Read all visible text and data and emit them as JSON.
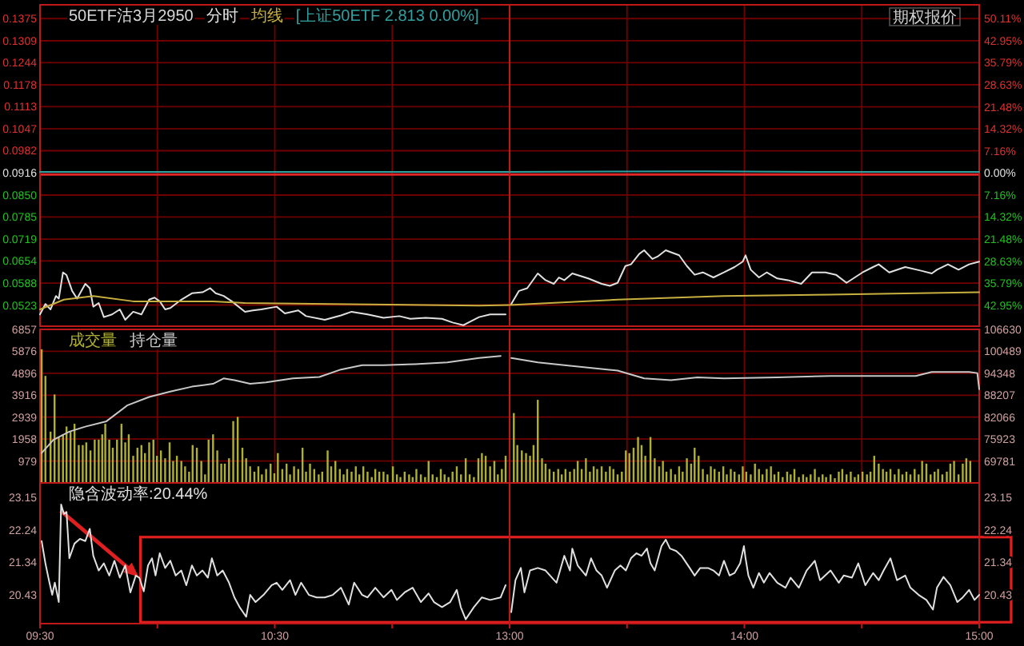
{
  "chart_data": [
    {
      "type": "line",
      "title": "50ETF沽3月2950",
      "legend": "top",
      "grid": true,
      "tick_labels": "y",
      "xlim": [
        9.5,
        11.5
      ],
      "xticks": [
        {
          "value": 10,
          "label": null
        },
        {
          "value": 10.5,
          "label": null
        },
        {
          "value": 11,
          "label": null
        }
      ],
      "ylim": [
        0.046,
        0.1416
      ],
      "yticks": [
        0.1375,
        0.1309,
        0.1244,
        0.1178,
        0.1113,
        0.1047,
        0.0982,
        0.0916,
        {
          "value": 0.085,
          "label": "0.0850"
        },
        0.0785,
        0.0719,
        0.0654,
        0.0588,
        0.0523
      ],
      "ref_lines": [
        {
          "axis": "y",
          "value": 0.0916,
          "color": "#e02828"
        }
      ],
      "series": [
        {
          "name": "分时",
          "color": "#e0e0e0",
          "x": [
            9.5,
            9.523,
            9.545,
            9.568,
            9.58,
            9.598,
            9.613,
            9.637,
            9.658,
            9.693,
            9.712,
            9.727,
            9.75,
            9.772,
            9.807,
            9.84,
            9.863,
            9.897,
            9.932,
            9.965,
            9.988,
            10.01,
            10.033,
            10.055,
            10.102,
            10.147,
            10.192,
            10.225,
            10.248,
            10.282,
            10.317,
            10.373,
            10.407,
            10.442,
            10.508,
            10.543,
            10.6,
            10.633,
            10.713,
            10.782,
            10.827,
            10.895,
            10.963,
            11.03,
            11.077,
            11.143,
            11.212,
            11.257,
            11.303,
            11.325,
            11.37,
            11.417,
            11.483
          ],
          "values": [
            0.0495,
            0.0526,
            0.051,
            0.055,
            0.0542,
            0.062,
            0.0612,
            0.0565,
            0.0542,
            0.0586,
            0.0573,
            0.0518,
            0.0529,
            0.0487,
            0.0495,
            0.051,
            0.0479,
            0.0503,
            0.0495,
            0.0539,
            0.0545,
            0.0534,
            0.051,
            0.0514,
            0.0539,
            0.0558,
            0.0561,
            0.0573,
            0.0558,
            0.055,
            0.0534,
            0.0503,
            0.0507,
            0.051,
            0.0518,
            0.0498,
            0.0507,
            0.049,
            0.0479,
            0.0492,
            0.0503,
            0.0495,
            0.0485,
            0.049,
            0.0482,
            0.0485,
            0.0482,
            0.0471,
            0.0463,
            0.0471,
            0.0487,
            0.0495,
            0.0495
          ]
        },
        {
          "name": "均线",
          "color": "#c8b040",
          "x": [
            9.5,
            9.602,
            9.727,
            9.897,
            10.237,
            10.373,
            10.735,
            11.37,
            11.5
          ],
          "values": [
            0.051,
            0.0539,
            0.055,
            0.0534,
            0.0534,
            0.0529,
            0.0526,
            0.0521,
            0.0523
          ]
        },
        {
          "name": "[上证50ETF 2.813 0.00%]",
          "color": "#30a0a0",
          "x": [
            9.5,
            10.5,
            11.5
          ],
          "values": [
            0.0919,
            0.0919,
            0.0919
          ]
        }
      ]
    },
    {
      "type": "line",
      "grid": true,
      "tick_labels": "y",
      "annotations": [
        "期权报价"
      ],
      "xlim": [
        13,
        15
      ],
      "xticks": [
        {
          "value": 13.5,
          "label": null
        },
        {
          "value": 14,
          "label": null
        },
        {
          "value": 14.5,
          "label": null
        }
      ],
      "ylim": [
        0.046,
        0.1416
      ],
      "y2lim": [
        -49.78,
        54.59
      ],
      "y2ticks": [
        {
          "value": 50.11,
          "label": "50.11%"
        },
        {
          "value": 42.95,
          "label": "42.95%"
        },
        {
          "value": 35.79,
          "label": "35.79%"
        },
        {
          "value": 28.63,
          "label": "28.63%"
        },
        {
          "value": 21.48,
          "label": "21.48%"
        },
        {
          "value": 14.32,
          "label": "14.32%"
        },
        {
          "value": 7.16,
          "label": "7.16%"
        },
        {
          "value": 0,
          "label": "0.00%"
        },
        {
          "value": -7.16,
          "label": "7.16%"
        },
        {
          "value": -14.32,
          "label": "14.32%"
        },
        {
          "value": -21.48,
          "label": "21.48%"
        },
        {
          "value": -28.63,
          "label": "28.63%"
        },
        {
          "value": -35.79,
          "label": "35.79%"
        },
        {
          "value": -42.95,
          "label": "42.95%"
        }
      ],
      "ref_lines": [
        {
          "axis": "y2",
          "value": 0,
          "color": "#e02828"
        }
      ],
      "series": [
        {
          "color": "#e0e0e0",
          "x": [
            13.007,
            13.04,
            13.075,
            13.12,
            13.153,
            13.188,
            13.21,
            13.233,
            13.267,
            13.335,
            13.392,
            13.427,
            13.46,
            13.493,
            13.517,
            13.552,
            13.573,
            13.608,
            13.63,
            13.665,
            13.687,
            13.722,
            13.755,
            13.788,
            13.823,
            13.868,
            13.913,
            13.958,
            13.993,
            14.005,
            14.027,
            14.062,
            14.095,
            14.14,
            14.185,
            14.242,
            14.288,
            14.345,
            14.39,
            14.435,
            14.503,
            14.548,
            14.572,
            14.617,
            14.685,
            14.753,
            14.798,
            14.82,
            14.867,
            14.912,
            14.957,
            15
          ],
          "values": [
            0.0526,
            0.0565,
            0.0573,
            0.0617,
            0.0597,
            0.0586,
            0.0605,
            0.0597,
            0.0617,
            0.0602,
            0.0586,
            0.058,
            0.0589,
            0.0639,
            0.0644,
            0.0675,
            0.0686,
            0.066,
            0.0667,
            0.0686,
            0.068,
            0.0671,
            0.0639,
            0.0613,
            0.062,
            0.0605,
            0.062,
            0.0636,
            0.0652,
            0.0671,
            0.0628,
            0.0605,
            0.062,
            0.0602,
            0.0597,
            0.0586,
            0.062,
            0.062,
            0.0613,
            0.0589,
            0.062,
            0.0636,
            0.0644,
            0.062,
            0.0636,
            0.0625,
            0.0617,
            0.0628,
            0.0644,
            0.0628,
            0.0644,
            0.0652
          ]
        },
        {
          "color": "#c8b040",
          "x": [
            13,
            13.46,
            13.913,
            14.367,
            15
          ],
          "values": [
            0.0523,
            0.0539,
            0.055,
            0.0554,
            0.0561
          ]
        },
        {
          "color": "#30a0a0",
          "x": [
            13,
            13.833,
            14.333,
            15
          ],
          "values": [
            0.0919,
            0.0921,
            0.0919,
            0.0919
          ]
        }
      ]
    },
    {
      "type": "bar",
      "legend": "top left",
      "grid": true,
      "tick_labels": "y",
      "xlim": [
        9.5,
        11.5
      ],
      "xticks": [
        {
          "value": 10,
          "label": null
        },
        {
          "value": 10.5,
          "label": null
        },
        {
          "value": 11,
          "label": null
        }
      ],
      "ylim": [
        0,
        6857
      ],
      "yticks": [
        979,
        1958,
        2939,
        3916,
        4896,
        5876,
        6857
      ],
      "y2lim": [
        63640,
        106630
      ],
      "series": [
        {
          "name": "成交量",
          "color": "#b0b030",
          "x": [
            9.507,
            9.523,
            9.545,
            9.562,
            9.58,
            9.598,
            9.613,
            9.63,
            9.647,
            9.665,
            9.682,
            9.697,
            9.715,
            9.733,
            9.75,
            9.765,
            9.778,
            9.795,
            9.81,
            9.828,
            9.847,
            9.863,
            9.878,
            9.897,
            9.915,
            9.932,
            9.947,
            9.965,
            9.983,
            9.998,
            10.015,
            10.033,
            10.052,
            10.067,
            10.083,
            10.102,
            10.118,
            10.135,
            10.15,
            10.168,
            10.187,
            10.203,
            10.218,
            10.237,
            10.255,
            10.272,
            10.287,
            10.305,
            10.323,
            10.342,
            10.362,
            10.378,
            10.395,
            10.413,
            10.43,
            10.445,
            10.463,
            10.482,
            10.498,
            10.513,
            10.532,
            10.55,
            10.565,
            10.582,
            10.6,
            10.618,
            10.633,
            10.65,
            10.668,
            10.687,
            10.702,
            10.725,
            10.74,
            10.758,
            10.777,
            10.793,
            10.808,
            10.827,
            10.845,
            10.86,
            10.877,
            10.895,
            10.913,
            10.928,
            10.945,
            10.963,
            10.98,
            11.003,
            11.02,
            11.035,
            11.053,
            11.072,
            11.087,
            11.103,
            11.122,
            11.14,
            11.155,
            11.172,
            11.19,
            11.207,
            11.223,
            11.24,
            11.257,
            11.275,
            11.293,
            11.313,
            11.33,
            11.348,
            11.367,
            11.382,
            11.398,
            11.417,
            11.435,
            11.45,
            11.467,
            11.483
          ],
          "values": [
            5970,
            4780,
            2290,
            3950,
            2050,
            2170,
            2520,
            2290,
            2640,
            1690,
            1690,
            1810,
            1450,
            1930,
            1930,
            2170,
            2640,
            1930,
            1570,
            1930,
            2640,
            1810,
            2170,
            1210,
            1570,
            1690,
            1330,
            1810,
            1930,
            1210,
            1450,
            1100,
            1810,
            980,
            1210,
            980,
            740,
            500,
            1690,
            1570,
            980,
            380,
            1930,
            2170,
            1450,
            860,
            860,
            1100,
            2760,
            2950,
            1570,
            1100,
            740,
            500,
            740,
            380,
            620,
            860,
            430,
            1330,
            620,
            860,
            380,
            740,
            620,
            1570,
            500,
            860,
            620,
            380,
            500,
            1450,
            740,
            980,
            620,
            380,
            620,
            500,
            740,
            380,
            740,
            500,
            260,
            620,
            500,
            500,
            380,
            740,
            380,
            260,
            500,
            380,
            260,
            620,
            380,
            260,
            980,
            380,
            260,
            620,
            380,
            260,
            500,
            740,
            380,
            1100,
            380,
            260,
            1100,
            1330,
            1210,
            740,
            980,
            380,
            620,
            1210
          ]
        },
        {
          "name": "持仓量",
          "type": "line",
          "axis": "y2",
          "color": "#c8c8c8",
          "x": [
            9.507,
            9.557,
            9.625,
            9.693,
            9.783,
            9.873,
            9.965,
            10.055,
            10.147,
            10.237,
            10.282,
            10.328,
            10.395,
            10.463,
            10.577,
            10.69,
            10.782,
            10.872,
            10.963,
            11.098,
            11.235,
            11.37,
            11.462
          ],
          "values": [
            72000,
            75700,
            78000,
            79400,
            80900,
            85400,
            87700,
            89200,
            90600,
            91400,
            92900,
            92400,
            91400,
            91800,
            92900,
            93300,
            95400,
            96600,
            96600,
            96900,
            97400,
            98600,
            99200
          ]
        }
      ]
    },
    {
      "type": "bar",
      "grid": true,
      "tick_labels": "y",
      "xlim": [
        13,
        15
      ],
      "xticks": [
        {
          "value": 13.5,
          "label": null
        },
        {
          "value": 14,
          "label": null
        },
        {
          "value": 14.5,
          "label": null
        }
      ],
      "ylim": [
        0,
        6857
      ],
      "y2lim": [
        63640,
        106630
      ],
      "y2ticks": [
        69781,
        75923,
        82066,
        88207,
        94348,
        100489,
        106630
      ],
      "series": [
        {
          "color": "#b0b030",
          "x": [
            13.018,
            13.033,
            13.052,
            13.07,
            13.087,
            13.102,
            13.12,
            13.138,
            13.153,
            13.17,
            13.188,
            13.207,
            13.222,
            13.238,
            13.257,
            13.275,
            13.29,
            13.307,
            13.325,
            13.342,
            13.358,
            13.373,
            13.392,
            13.41,
            13.427,
            13.442,
            13.46,
            13.478,
            13.495,
            13.51,
            13.528,
            13.547,
            13.562,
            13.578,
            13.6,
            13.618,
            13.637,
            13.653,
            13.668,
            13.687,
            13.705,
            13.722,
            13.737,
            13.755,
            13.773,
            13.788,
            13.805,
            13.823,
            13.842,
            13.857,
            13.873,
            13.892,
            13.91,
            13.925,
            13.942,
            13.958,
            13.977,
            13.993,
            14.008,
            14.027,
            14.045,
            14.062,
            14.077,
            14.095,
            14.113,
            14.128,
            14.145,
            14.163,
            14.182,
            14.197,
            14.213,
            14.232,
            14.25,
            14.265,
            14.282,
            14.3,
            14.317,
            14.333,
            14.348,
            14.367,
            14.385,
            14.402,
            14.417,
            14.435,
            14.453,
            14.47,
            14.485,
            14.503,
            14.522,
            14.537,
            14.553,
            14.572,
            14.59,
            14.605,
            14.622,
            14.64,
            14.657,
            14.673,
            14.69,
            14.707,
            14.725,
            14.742,
            14.757,
            14.775,
            14.793,
            14.81,
            14.825,
            14.843,
            14.862,
            14.877,
            14.893,
            14.912,
            14.93,
            14.945,
            14.962
          ],
          "values": [
            3120,
            1690,
            1450,
            1330,
            1210,
            1690,
            3710,
            1100,
            860,
            620,
            500,
            620,
            380,
            620,
            500,
            620,
            980,
            620,
            1100,
            500,
            740,
            620,
            740,
            500,
            740,
            620,
            380,
            500,
            1450,
            1330,
            1570,
            2050,
            1690,
            1210,
            2050,
            1100,
            740,
            980,
            500,
            620,
            380,
            740,
            500,
            1100,
            860,
            1570,
            1210,
            620,
            380,
            740,
            620,
            500,
            740,
            380,
            620,
            500,
            380,
            740,
            500,
            380,
            860,
            620,
            380,
            620,
            740,
            380,
            500,
            260,
            500,
            380,
            620,
            260,
            380,
            260,
            380,
            620,
            260,
            380,
            260,
            380,
            210,
            500,
            620,
            380,
            500,
            260,
            380,
            500,
            380,
            500,
            1210,
            860,
            620,
            500,
            620,
            380,
            620,
            380,
            500,
            380,
            620,
            380,
            980,
            860,
            380,
            500,
            620,
            380,
            500,
            860,
            980,
            380,
            860,
            1100,
            980
          ]
        },
        {
          "type": "line",
          "axis": "y2",
          "color": "#c8c8c8",
          "x": [
            13.007,
            13.12,
            13.233,
            13.46,
            13.573,
            13.687,
            13.8,
            13.913,
            14.14,
            14.367,
            14.593,
            14.73,
            14.798,
            14.957,
            14.992,
            15
          ],
          "values": [
            98600,
            97400,
            96600,
            95100,
            92900,
            92400,
            93200,
            92900,
            93200,
            93600,
            93600,
            93600,
            94700,
            94700,
            94400,
            89900
          ]
        }
      ]
    },
    {
      "type": "line",
      "legend": "top left",
      "xlim": [
        9.5,
        11.5
      ],
      "xticks": [
        {
          "value": 9.5,
          "label": "09:30"
        },
        {
          "value": 10,
          "label": null
        },
        {
          "value": 10.5,
          "label": "10:30"
        },
        {
          "value": 11,
          "label": null
        }
      ],
      "ylim": [
        19.63,
        23.55
      ],
      "yticks": [
        20.43,
        21.34,
        22.24,
        23.15
      ],
      "series": [
        {
          "name": "隐含波动率:20.44%",
          "color": "#e0e0e0",
          "x": [
            9.507,
            9.523,
            9.538,
            9.552,
            9.563,
            9.58,
            9.59,
            9.602,
            9.613,
            9.625,
            9.647,
            9.67,
            9.693,
            9.712,
            9.727,
            9.75,
            9.772,
            9.795,
            9.817,
            9.84,
            9.863,
            9.885,
            9.908,
            9.923,
            9.942,
            9.96,
            9.977,
            9.992,
            10.01,
            10.033,
            10.055,
            10.078,
            10.102,
            10.123,
            10.147,
            10.168,
            10.192,
            10.215,
            10.232,
            10.255,
            10.278,
            10.305,
            10.328,
            10.35,
            10.378,
            10.395,
            10.418,
            10.452,
            10.487,
            10.508,
            10.532,
            10.565,
            10.588,
            10.612,
            10.645,
            10.678,
            10.713,
            10.747,
            10.782,
            10.815,
            10.838,
            10.872,
            10.895,
            10.928,
            10.963,
            10.997,
            11.02,
            11.053,
            11.087,
            11.122,
            11.155,
            11.178,
            11.212,
            11.247,
            11.275,
            11.292,
            11.313,
            11.348,
            11.382,
            11.417,
            11.462,
            11.483
          ],
          "values": [
            21.93,
            21.31,
            20.84,
            20.43,
            20.77,
            20.23,
            22.95,
            22.68,
            22.74,
            21.45,
            21.86,
            21.99,
            21.93,
            22.27,
            21.52,
            21.11,
            21.31,
            20.97,
            21.38,
            20.91,
            21.25,
            20.5,
            20.97,
            20.91,
            20.53,
            21.25,
            21.45,
            20.97,
            21.59,
            21.18,
            21.38,
            20.97,
            21.11,
            20.7,
            21.25,
            20.97,
            21.11,
            20.91,
            21.45,
            20.97,
            21.11,
            20.77,
            20.36,
            20.09,
            19.82,
            20.43,
            20.23,
            20.43,
            20.7,
            20.77,
            20.57,
            20.84,
            20.43,
            20.77,
            20.43,
            20.36,
            20.36,
            20.43,
            20.63,
            20.16,
            20.77,
            20.43,
            20.36,
            20.63,
            20.36,
            20.57,
            20.29,
            20.5,
            20.63,
            20.23,
            20.47,
            20.23,
            20.09,
            20.23,
            20.57,
            20.09,
            19.75,
            20.09,
            20.36,
            20.29,
            20.36,
            20.7
          ]
        }
      ]
    },
    {
      "type": "line",
      "xlim": [
        13,
        15
      ],
      "xticks": [
        {
          "value": 13,
          "label": "13:00"
        },
        {
          "value": 13.5,
          "label": null
        },
        {
          "value": 14,
          "label": "14:00"
        },
        {
          "value": 14.5,
          "label": null
        },
        {
          "value": 15,
          "label": "15:00"
        }
      ],
      "y2lim": [
        19.63,
        23.55
      ],
      "y2ticks": [
        20.43,
        21.34,
        22.24,
        23.15
      ],
      "series": [
        {
          "axis": "y2",
          "color": "#e0e0e0",
          "x": [
            13.007,
            13.025,
            13.048,
            13.063,
            13.087,
            13.12,
            13.153,
            13.2,
            13.233,
            13.257,
            13.267,
            13.29,
            13.325,
            13.347,
            13.37,
            13.392,
            13.415,
            13.448,
            13.472,
            13.495,
            13.517,
            13.54,
            13.562,
            13.585,
            13.6,
            13.618,
            13.647,
            13.665,
            13.683,
            13.71,
            13.732,
            13.767,
            13.788,
            13.812,
            13.845,
            13.868,
            13.892,
            13.913,
            13.937,
            13.958,
            13.982,
            13.998,
            14.005,
            14.017,
            14.038,
            14.062,
            14.083,
            14.107,
            14.14,
            14.175,
            14.197,
            14.232,
            14.265,
            14.3,
            14.322,
            14.367,
            14.402,
            14.423,
            14.458,
            14.485,
            14.515,
            14.548,
            14.572,
            14.593,
            14.622,
            14.65,
            14.685,
            14.707,
            14.742,
            14.775,
            14.803,
            14.82,
            14.848,
            14.877,
            14.907,
            14.93,
            14.957,
            14.98,
            15
          ],
          "values": [
            19.95,
            20.84,
            21.18,
            20.5,
            21.11,
            21.18,
            21.11,
            20.77,
            21.52,
            21.11,
            21.72,
            21.25,
            20.97,
            21.45,
            21.11,
            20.97,
            20.63,
            21.11,
            21.25,
            21.11,
            21.45,
            21.59,
            21.52,
            21.72,
            21.31,
            21.11,
            21.79,
            21.97,
            21.72,
            21.65,
            21.52,
            21.18,
            20.97,
            21.18,
            21.18,
            21.11,
            20.97,
            21.38,
            20.97,
            21.04,
            21.31,
            21.79,
            21.45,
            20.97,
            20.63,
            21.04,
            20.77,
            21.04,
            20.77,
            20.63,
            20.91,
            20.63,
            21.11,
            21.38,
            20.84,
            21.11,
            20.77,
            20.97,
            20.91,
            21.31,
            20.7,
            21.04,
            20.84,
            21.11,
            21.45,
            20.84,
            20.97,
            20.63,
            20.43,
            20.29,
            20.02,
            20.63,
            20.93,
            20.7,
            20.23,
            20.36,
            20.57,
            20.29,
            20.43
          ]
        }
      ]
    }
  ]
}
